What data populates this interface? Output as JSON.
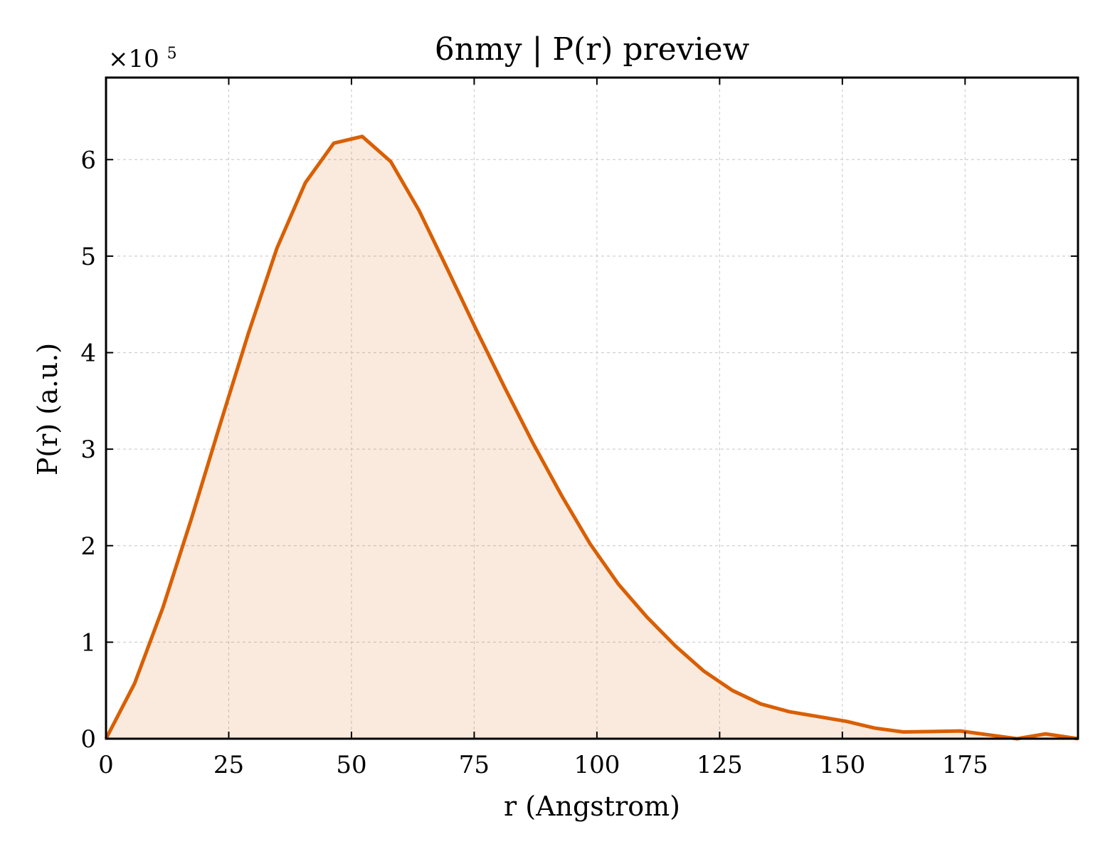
{
  "chart_data": {
    "type": "area",
    "title": "6nmy | P(r) preview",
    "xlabel": "r (Angstrom)",
    "ylabel": "P(r) (a.u.)",
    "y_multiplier": {
      "base": "×10",
      "exponent": "5"
    },
    "xlim": [
      0,
      198
    ],
    "ylim": [
      0,
      6.85
    ],
    "x_ticks": [
      0,
      25,
      50,
      75,
      100,
      125,
      150,
      175
    ],
    "y_ticks": [
      0,
      1,
      2,
      3,
      4,
      5,
      6
    ],
    "grid": true,
    "legend": "none",
    "colors": {
      "line": "#d95f02",
      "fill": "#d95f02",
      "grid": "#d0d0d0",
      "axes": "#000000"
    },
    "series": [
      {
        "x": [
          0,
          5.8,
          11.6,
          17.4,
          23.2,
          29.0,
          34.8,
          40.6,
          46.4,
          52.2,
          58.0,
          63.8,
          69.6,
          75.4,
          81.2,
          87.0,
          92.8,
          98.6,
          104.4,
          110.2,
          116.0,
          121.8,
          127.6,
          133.4,
          139.2,
          145.0,
          150.8,
          156.6,
          162.4,
          168.2,
          174.0,
          179.8,
          185.6,
          191.4,
          198.0
        ],
        "y": [
          0.0,
          0.57,
          1.36,
          2.28,
          3.25,
          4.2,
          5.08,
          5.76,
          6.17,
          6.24,
          5.98,
          5.47,
          4.86,
          4.24,
          3.64,
          3.06,
          2.52,
          2.02,
          1.6,
          1.26,
          0.96,
          0.7,
          0.5,
          0.36,
          0.28,
          0.23,
          0.18,
          0.11,
          0.07,
          0.075,
          0.08,
          0.04,
          0.0,
          0.05,
          0.0
        ]
      }
    ]
  }
}
